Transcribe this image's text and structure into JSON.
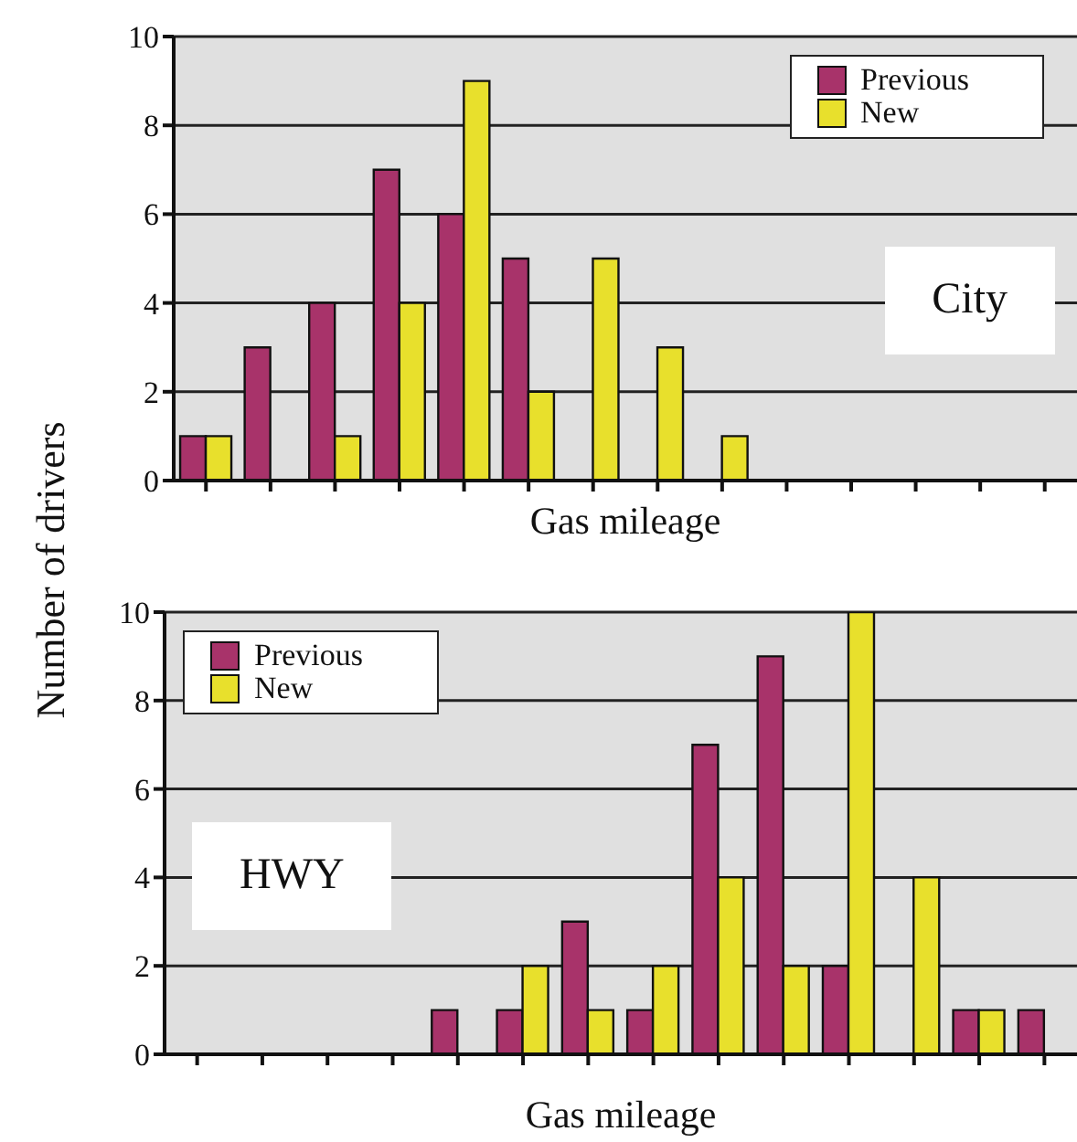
{
  "chart_data": [
    {
      "type": "bar",
      "xlabel": "Gas mileage",
      "ylabel": "Number of drivers",
      "categories": [
        null,
        null,
        null,
        null,
        null,
        null,
        null,
        null,
        null,
        null,
        null,
        null,
        null,
        null
      ],
      "series": [
        {
          "name": "Previous",
          "color": "#a8336a",
          "values": [
            1,
            3,
            4,
            7,
            6,
            5,
            0,
            0,
            0,
            0,
            0,
            0,
            0,
            0
          ]
        },
        {
          "name": "New",
          "color": "#e8e02c",
          "values": [
            1,
            0,
            1,
            4,
            9,
            2,
            5,
            3,
            1,
            0,
            0,
            0,
            0,
            0
          ]
        }
      ],
      "ylim": [
        0,
        10
      ],
      "yticks": [
        0,
        2,
        4,
        6,
        8,
        10
      ],
      "grid": "y",
      "legend": "top right",
      "tick_labels": "y",
      "annotations": [
        "City"
      ]
    },
    {
      "type": "bar",
      "xlabel": "Gas mileage",
      "categories": [
        null,
        null,
        null,
        null,
        null,
        null,
        null,
        null,
        null,
        null,
        null,
        null,
        null,
        null
      ],
      "series": [
        {
          "name": "Previous",
          "color": "#a8336a",
          "values": [
            0,
            0,
            0,
            0,
            1,
            1,
            3,
            1,
            7,
            9,
            2,
            0,
            1,
            1
          ]
        },
        {
          "name": "New",
          "color": "#e8e02c",
          "values": [
            0,
            0,
            0,
            0,
            0,
            2,
            1,
            2,
            4,
            2,
            10,
            4,
            1,
            0
          ]
        }
      ],
      "ylim": [
        0,
        10
      ],
      "yticks": [
        0,
        2,
        4,
        6,
        8,
        10
      ],
      "grid": "y",
      "legend": "top left",
      "tick_labels": "y",
      "annotations": [
        "HWY"
      ]
    }
  ]
}
